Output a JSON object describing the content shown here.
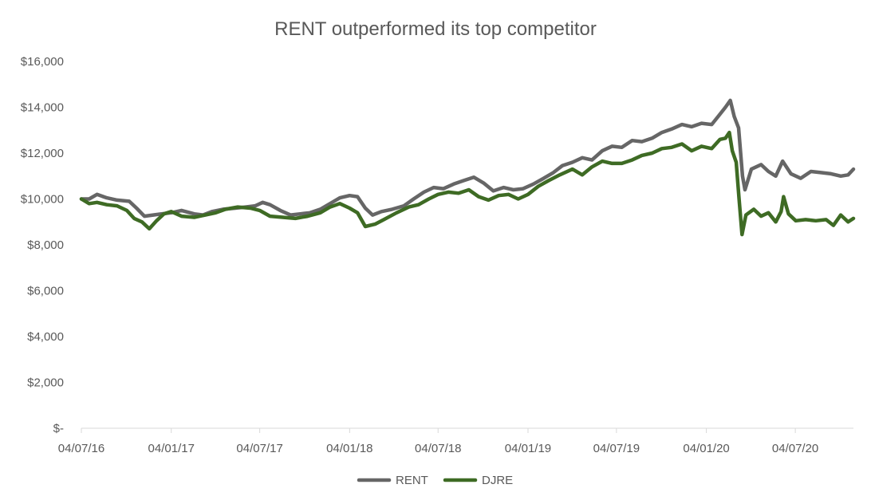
{
  "chart_data": {
    "type": "line",
    "title": "RENT outperformed its top competitor",
    "xlabel": "",
    "ylabel": "",
    "ylim": [
      0,
      16000
    ],
    "y_ticks": [
      {
        "value": 0,
        "label": "$-"
      },
      {
        "value": 2000,
        "label": "$2,000"
      },
      {
        "value": 4000,
        "label": "$4,000"
      },
      {
        "value": 6000,
        "label": "$6,000"
      },
      {
        "value": 8000,
        "label": "$8,000"
      },
      {
        "value": 10000,
        "label": "$10,000"
      },
      {
        "value": 12000,
        "label": "$12,000"
      },
      {
        "value": 14000,
        "label": "$14,000"
      },
      {
        "value": 16000,
        "label": "$16,000"
      }
    ],
    "x_range": [
      "2016-07-04",
      "2020-10-31"
    ],
    "x_ticks": [
      {
        "date": "2016-07-04",
        "label": "04/07/16"
      },
      {
        "date": "2017-01-04",
        "label": "04/01/17"
      },
      {
        "date": "2017-07-04",
        "label": "04/07/17"
      },
      {
        "date": "2018-01-04",
        "label": "04/01/18"
      },
      {
        "date": "2018-07-04",
        "label": "04/07/18"
      },
      {
        "date": "2019-01-04",
        "label": "04/01/19"
      },
      {
        "date": "2019-07-04",
        "label": "04/07/19"
      },
      {
        "date": "2020-01-04",
        "label": "04/01/20"
      },
      {
        "date": "2020-07-04",
        "label": "04/07/20"
      }
    ],
    "grid": false,
    "legend_position": "bottom",
    "series": [
      {
        "name": "RENT",
        "color": "#666666",
        "points": [
          [
            "2016-07-04",
            10000
          ],
          [
            "2016-07-20",
            10000
          ],
          [
            "2016-08-05",
            10200
          ],
          [
            "2016-08-25",
            10050
          ],
          [
            "2016-09-15",
            9950
          ],
          [
            "2016-10-10",
            9900
          ],
          [
            "2016-10-25",
            9600
          ],
          [
            "2016-11-10",
            9250
          ],
          [
            "2016-11-28",
            9300
          ],
          [
            "2016-12-15",
            9350
          ],
          [
            "2017-01-04",
            9400
          ],
          [
            "2017-01-25",
            9500
          ],
          [
            "2017-02-20",
            9350
          ],
          [
            "2017-03-10",
            9300
          ],
          [
            "2017-03-28",
            9450
          ],
          [
            "2017-04-20",
            9550
          ],
          [
            "2017-05-15",
            9600
          ],
          [
            "2017-06-05",
            9650
          ],
          [
            "2017-06-25",
            9700
          ],
          [
            "2017-07-10",
            9850
          ],
          [
            "2017-07-25",
            9750
          ],
          [
            "2017-08-15",
            9500
          ],
          [
            "2017-09-05",
            9300
          ],
          [
            "2017-09-25",
            9350
          ],
          [
            "2017-10-15",
            9400
          ],
          [
            "2017-11-05",
            9550
          ],
          [
            "2017-11-25",
            9800
          ],
          [
            "2017-12-15",
            10050
          ],
          [
            "2018-01-04",
            10150
          ],
          [
            "2018-01-20",
            10100
          ],
          [
            "2018-02-05",
            9600
          ],
          [
            "2018-02-20",
            9300
          ],
          [
            "2018-03-10",
            9450
          ],
          [
            "2018-04-01",
            9550
          ],
          [
            "2018-04-25",
            9700
          ],
          [
            "2018-05-15",
            10000
          ],
          [
            "2018-06-05",
            10300
          ],
          [
            "2018-06-25",
            10500
          ],
          [
            "2018-07-15",
            10450
          ],
          [
            "2018-08-05",
            10650
          ],
          [
            "2018-08-25",
            10800
          ],
          [
            "2018-09-15",
            10950
          ],
          [
            "2018-10-05",
            10700
          ],
          [
            "2018-10-25",
            10350
          ],
          [
            "2018-11-15",
            10500
          ],
          [
            "2018-12-05",
            10400
          ],
          [
            "2018-12-25",
            10450
          ],
          [
            "2019-01-15",
            10650
          ],
          [
            "2019-02-05",
            10900
          ],
          [
            "2019-02-25",
            11150
          ],
          [
            "2019-03-15",
            11450
          ],
          [
            "2019-04-05",
            11600
          ],
          [
            "2019-04-25",
            11800
          ],
          [
            "2019-05-15",
            11700
          ],
          [
            "2019-06-05",
            12100
          ],
          [
            "2019-06-25",
            12300
          ],
          [
            "2019-07-15",
            12250
          ],
          [
            "2019-08-05",
            12550
          ],
          [
            "2019-08-25",
            12500
          ],
          [
            "2019-09-15",
            12650
          ],
          [
            "2019-10-05",
            12900
          ],
          [
            "2019-10-25",
            13050
          ],
          [
            "2019-11-15",
            13250
          ],
          [
            "2019-12-05",
            13150
          ],
          [
            "2019-12-25",
            13300
          ],
          [
            "2020-01-15",
            13250
          ],
          [
            "2020-02-01",
            13700
          ],
          [
            "2020-02-12",
            14000
          ],
          [
            "2020-02-22",
            14300
          ],
          [
            "2020-03-01",
            13600
          ],
          [
            "2020-03-10",
            13100
          ],
          [
            "2020-03-18",
            11000
          ],
          [
            "2020-03-23",
            10400
          ],
          [
            "2020-04-05",
            11300
          ],
          [
            "2020-04-25",
            11500
          ],
          [
            "2020-05-10",
            11200
          ],
          [
            "2020-05-25",
            11000
          ],
          [
            "2020-06-08",
            11650
          ],
          [
            "2020-06-25",
            11100
          ],
          [
            "2020-07-15",
            10900
          ],
          [
            "2020-08-05",
            11200
          ],
          [
            "2020-08-25",
            11150
          ],
          [
            "2020-09-15",
            11100
          ],
          [
            "2020-10-05",
            11000
          ],
          [
            "2020-10-20",
            11050
          ],
          [
            "2020-10-31",
            11300
          ]
        ]
      },
      {
        "name": "DJRE",
        "color": "#3e6b24",
        "points": [
          [
            "2016-07-04",
            10000
          ],
          [
            "2016-07-20",
            9800
          ],
          [
            "2016-08-05",
            9850
          ],
          [
            "2016-08-25",
            9750
          ],
          [
            "2016-09-15",
            9700
          ],
          [
            "2016-10-05",
            9500
          ],
          [
            "2016-10-20",
            9150
          ],
          [
            "2016-11-05",
            9000
          ],
          [
            "2016-11-20",
            8700
          ],
          [
            "2016-12-05",
            9050
          ],
          [
            "2016-12-20",
            9350
          ],
          [
            "2017-01-04",
            9450
          ],
          [
            "2017-01-25",
            9250
          ],
          [
            "2017-02-20",
            9200
          ],
          [
            "2017-03-15",
            9300
          ],
          [
            "2017-04-05",
            9400
          ],
          [
            "2017-04-25",
            9550
          ],
          [
            "2017-05-20",
            9650
          ],
          [
            "2017-06-15",
            9600
          ],
          [
            "2017-07-04",
            9500
          ],
          [
            "2017-07-25",
            9250
          ],
          [
            "2017-08-20",
            9200
          ],
          [
            "2017-09-15",
            9150
          ],
          [
            "2017-10-10",
            9250
          ],
          [
            "2017-11-05",
            9400
          ],
          [
            "2017-11-25",
            9650
          ],
          [
            "2017-12-15",
            9800
          ],
          [
            "2018-01-04",
            9600
          ],
          [
            "2018-01-20",
            9400
          ],
          [
            "2018-02-05",
            8800
          ],
          [
            "2018-02-25",
            8900
          ],
          [
            "2018-03-15",
            9100
          ],
          [
            "2018-04-10",
            9400
          ],
          [
            "2018-05-05",
            9650
          ],
          [
            "2018-05-25",
            9750
          ],
          [
            "2018-06-15",
            10000
          ],
          [
            "2018-07-04",
            10200
          ],
          [
            "2018-07-25",
            10300
          ],
          [
            "2018-08-15",
            10250
          ],
          [
            "2018-09-05",
            10400
          ],
          [
            "2018-09-25",
            10100
          ],
          [
            "2018-10-15",
            9950
          ],
          [
            "2018-11-05",
            10150
          ],
          [
            "2018-11-25",
            10200
          ],
          [
            "2018-12-15",
            10000
          ],
          [
            "2019-01-04",
            10200
          ],
          [
            "2019-01-25",
            10550
          ],
          [
            "2019-02-15",
            10800
          ],
          [
            "2019-03-10",
            11050
          ],
          [
            "2019-04-05",
            11300
          ],
          [
            "2019-04-25",
            11050
          ],
          [
            "2019-05-15",
            11400
          ],
          [
            "2019-06-05",
            11650
          ],
          [
            "2019-06-25",
            11550
          ],
          [
            "2019-07-15",
            11550
          ],
          [
            "2019-08-05",
            11700
          ],
          [
            "2019-08-25",
            11900
          ],
          [
            "2019-09-15",
            12000
          ],
          [
            "2019-10-05",
            12200
          ],
          [
            "2019-10-25",
            12250
          ],
          [
            "2019-11-15",
            12400
          ],
          [
            "2019-12-05",
            12100
          ],
          [
            "2019-12-25",
            12300
          ],
          [
            "2020-01-15",
            12200
          ],
          [
            "2020-02-01",
            12600
          ],
          [
            "2020-02-12",
            12650
          ],
          [
            "2020-02-20",
            12900
          ],
          [
            "2020-02-26",
            12100
          ],
          [
            "2020-03-05",
            11600
          ],
          [
            "2020-03-11",
            10000
          ],
          [
            "2020-03-17",
            8450
          ],
          [
            "2020-03-25",
            9300
          ],
          [
            "2020-04-10",
            9550
          ],
          [
            "2020-04-25",
            9250
          ],
          [
            "2020-05-10",
            9400
          ],
          [
            "2020-05-25",
            9000
          ],
          [
            "2020-06-05",
            9450
          ],
          [
            "2020-06-10",
            10100
          ],
          [
            "2020-06-20",
            9350
          ],
          [
            "2020-07-05",
            9050
          ],
          [
            "2020-07-25",
            9100
          ],
          [
            "2020-08-15",
            9050
          ],
          [
            "2020-09-05",
            9100
          ],
          [
            "2020-09-20",
            8850
          ],
          [
            "2020-10-05",
            9300
          ],
          [
            "2020-10-20",
            9000
          ],
          [
            "2020-10-31",
            9150
          ]
        ]
      }
    ]
  }
}
